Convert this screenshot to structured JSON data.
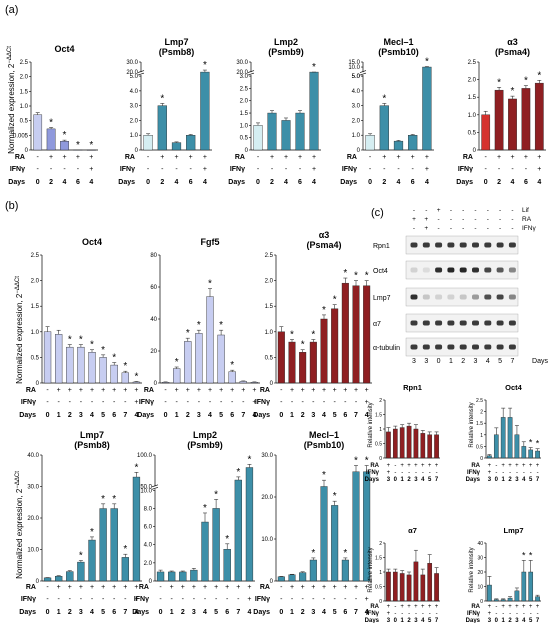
{
  "panels": {
    "a": "(a)",
    "b": "(b)",
    "c": "(c)"
  },
  "colors": {
    "blue_light": "#c7cdf1",
    "blue_mid": "#8f99dc",
    "blue_teal": "#3d8fa8",
    "teal_light": "#d5eef2",
    "red_light": "#d5322e",
    "red_dark": "#8f1f22",
    "pink_marker": "#d6237a",
    "teal_marker": "#1a8f80"
  },
  "shared_text": {
    "ylabel": "Normalized expression, 2^-ΔΔCt",
    "ylabel_short": "Normalized expression, 2",
    "ylabel_sup": "−ΔΔCt",
    "rel_intensity": "Relative intensity",
    "row_RA": "RA",
    "row_IFNy": "IFNγ",
    "row_Days": "Days",
    "star": "*"
  },
  "chart_data": [
    {
      "id": "a1",
      "type": "bar",
      "title": "Oct4",
      "categories": [
        "0",
        "2",
        "4",
        "6",
        "4"
      ],
      "ra": [
        "-",
        "+",
        "+",
        "+",
        "+"
      ],
      "ifny": [
        "-",
        "-",
        "-",
        "-",
        "+"
      ],
      "values": [
        1.0,
        0.6,
        0.25,
        0.005,
        0.003
      ],
      "errors": [
        0.06,
        0.04,
        0.03,
        0.001,
        0.001
      ],
      "sig": [
        false,
        true,
        true,
        true,
        true
      ],
      "ylim": [
        0,
        2.5
      ],
      "yticks": [
        "0",
        "0.005",
        "0.5",
        "1.0",
        "1.5",
        "2.0",
        "2.5"
      ],
      "colors": [
        "#c7cdf1",
        "#8f99dc",
        "#8f99dc",
        "#8f99dc",
        "#8f99dc"
      ]
    },
    {
      "id": "a2",
      "type": "bar",
      "title": "Lmp7",
      "subtitle": "(Psmb8)",
      "categories": [
        "0",
        "2",
        "4",
        "6",
        "4"
      ],
      "ra": [
        "-",
        "+",
        "+",
        "+",
        "+"
      ],
      "ifny": [
        "-",
        "-",
        "-",
        "-",
        "+"
      ],
      "values": [
        1.0,
        3.0,
        0.5,
        1.0,
        20
      ],
      "errors": [
        0.1,
        0.15,
        0.05,
        0.05,
        2
      ],
      "sig": [
        false,
        true,
        false,
        false,
        true
      ],
      "yticks": [
        "0",
        "1.0",
        "2.0",
        "3.0",
        "4.0",
        "5.0",
        "20.0",
        "30.0"
      ],
      "colors": [
        "#d5eef2",
        "#3d8fa8",
        "#3d8fa8",
        "#3d8fa8",
        "#3d8fa8"
      ]
    },
    {
      "id": "a3",
      "type": "bar",
      "title": "Lmp2",
      "subtitle": "(Psmb9)",
      "categories": [
        "0",
        "2",
        "4",
        "6",
        "4"
      ],
      "ra": [
        "-",
        "+",
        "+",
        "+",
        "+"
      ],
      "ifny": [
        "-",
        "-",
        "-",
        "-",
        "+"
      ],
      "values": [
        1.0,
        1.5,
        1.2,
        1.5,
        18
      ],
      "errors": [
        0.1,
        0.1,
        0.1,
        0.1,
        1.5
      ],
      "sig": [
        false,
        false,
        false,
        false,
        true
      ],
      "yticks": [
        "0",
        "0.5",
        "1.0",
        "1.5",
        "2.0",
        "2.5",
        "3.0",
        "20.0",
        "30.0"
      ],
      "colors": [
        "#d5eef2",
        "#3d8fa8",
        "#3d8fa8",
        "#3d8fa8",
        "#3d8fa8"
      ]
    },
    {
      "id": "a4",
      "type": "bar",
      "title": "Mecl–1",
      "subtitle": "(Psmb10)",
      "categories": [
        "0",
        "2",
        "4",
        "6",
        "4"
      ],
      "ra": [
        "-",
        "+",
        "+",
        "+",
        "+"
      ],
      "ifny": [
        "-",
        "-",
        "-",
        "-",
        "+"
      ],
      "values": [
        1.0,
        3.0,
        0.6,
        1.0,
        10
      ],
      "errors": [
        0.1,
        0.15,
        0.05,
        0.05,
        0.5
      ],
      "sig": [
        false,
        true,
        false,
        false,
        true
      ],
      "yticks": [
        "0",
        "1.0",
        "2.0",
        "3.0",
        "4.0",
        "5.0",
        "5.0",
        "10.0",
        "15.0"
      ],
      "colors": [
        "#d5eef2",
        "#3d8fa8",
        "#3d8fa8",
        "#3d8fa8",
        "#3d8fa8"
      ]
    },
    {
      "id": "a5",
      "type": "bar",
      "title": "α3",
      "subtitle": "(Psma4)",
      "categories": [
        "0",
        "2",
        "4",
        "6",
        "4"
      ],
      "ra": [
        "-",
        "+",
        "+",
        "+",
        "+"
      ],
      "ifny": [
        "-",
        "-",
        "-",
        "-",
        "+"
      ],
      "values": [
        1.0,
        1.7,
        1.45,
        1.75,
        1.9
      ],
      "errors": [
        0.1,
        0.08,
        0.08,
        0.08,
        0.08
      ],
      "sig": [
        false,
        true,
        true,
        true,
        true
      ],
      "ylim": [
        0,
        2.5
      ],
      "yticks": [
        "0",
        "0.5",
        "1.0",
        "1.5",
        "2.0",
        "2.5"
      ],
      "colors": [
        "#d5322e",
        "#8f1f22",
        "#8f1f22",
        "#8f1f22",
        "#8f1f22"
      ]
    },
    {
      "id": "b1",
      "type": "bar",
      "title": "Oct4",
      "categories": [
        "0",
        "1",
        "2",
        "3",
        "4",
        "5",
        "6",
        "7",
        "4"
      ],
      "ra": [
        "-",
        "+",
        "+",
        "+",
        "+",
        "+",
        "+",
        "+",
        "+"
      ],
      "ifny": [
        "-",
        "-",
        "-",
        "-",
        "-",
        "-",
        "-",
        "-",
        "+"
      ],
      "values": [
        1.0,
        0.95,
        0.7,
        0.7,
        0.6,
        0.5,
        0.35,
        0.2,
        0.02
      ],
      "errors": [
        0.1,
        0.08,
        0.05,
        0.05,
        0.05,
        0.05,
        0.05,
        0.03,
        0.01
      ],
      "sig": [
        false,
        false,
        true,
        true,
        true,
        true,
        true,
        true,
        true
      ],
      "ylim": [
        0,
        2.5
      ],
      "yticks": [
        "0",
        "0.5",
        "1.0",
        "1.5",
        "2.0",
        "2.5"
      ],
      "colors": [
        "#c7cdf1",
        "#c7cdf1",
        "#c7cdf1",
        "#c7cdf1",
        "#c7cdf1",
        "#c7cdf1",
        "#c7cdf1",
        "#c7cdf1",
        "#c7cdf1"
      ]
    },
    {
      "id": "b2",
      "type": "bar",
      "title": "Fgf5",
      "categories": [
        "0",
        "1",
        "2",
        "3",
        "4",
        "5",
        "6",
        "7",
        "4"
      ],
      "ra": [
        "-",
        "+",
        "+",
        "+",
        "+",
        "+",
        "+",
        "+",
        "+"
      ],
      "ifny": [
        "-",
        "-",
        "-",
        "-",
        "-",
        "-",
        "-",
        "-",
        "+"
      ],
      "values": [
        0.5,
        9,
        26,
        31,
        54,
        30,
        7,
        1,
        0.5
      ],
      "errors": [
        0.2,
        1,
        2,
        2,
        5,
        3,
        1,
        0.3,
        0.2
      ],
      "sig": [
        false,
        true,
        true,
        true,
        true,
        true,
        true,
        false,
        false
      ],
      "ylim": [
        0,
        80
      ],
      "yticks": [
        "0",
        "20",
        "40",
        "60",
        "80"
      ],
      "colors": [
        "#c7cdf1",
        "#c7cdf1",
        "#c7cdf1",
        "#c7cdf1",
        "#c7cdf1",
        "#c7cdf1",
        "#c7cdf1",
        "#c7cdf1",
        "#c7cdf1"
      ]
    },
    {
      "id": "b3",
      "type": "bar",
      "title": "α3",
      "subtitle": "(Psma4)",
      "categories": [
        "0",
        "1",
        "2",
        "3",
        "4",
        "5",
        "6",
        "7",
        "4"
      ],
      "ra": [
        "-",
        "+",
        "+",
        "+",
        "+",
        "+",
        "+",
        "+",
        "+"
      ],
      "ifny": [
        "-",
        "-",
        "-",
        "-",
        "-",
        "-",
        "-",
        "-",
        "+"
      ],
      "values": [
        1.0,
        0.8,
        0.6,
        0.8,
        1.25,
        1.45,
        1.95,
        1.9,
        1.9
      ],
      "errors": [
        0.1,
        0.05,
        0.05,
        0.05,
        0.08,
        0.08,
        0.1,
        0.1,
        0.1
      ],
      "sig": [
        false,
        true,
        true,
        true,
        true,
        true,
        true,
        true,
        true
      ],
      "ylim": [
        0,
        2.5
      ],
      "yticks": [
        "0",
        "0.5",
        "1.0",
        "1.5",
        "2.0",
        "2.5"
      ],
      "colors": [
        "#8f1f22",
        "#8f1f22",
        "#8f1f22",
        "#8f1f22",
        "#8f1f22",
        "#8f1f22",
        "#8f1f22",
        "#8f1f22",
        "#8f1f22"
      ]
    },
    {
      "id": "b4",
      "type": "bar",
      "title": "Lmp7",
      "subtitle": "(Psmb8)",
      "categories": [
        "0",
        "1",
        "2",
        "3",
        "4",
        "5",
        "6",
        "7",
        "4"
      ],
      "ra": [
        "-",
        "+",
        "+",
        "+",
        "+",
        "+",
        "+",
        "+",
        "+"
      ],
      "ifny": [
        "-",
        "-",
        "-",
        "-",
        "-",
        "-",
        "-",
        "-",
        "+"
      ],
      "values": [
        1.0,
        1.5,
        3.0,
        6.0,
        13,
        23,
        23,
        7.5,
        33
      ],
      "errors": [
        0.1,
        0.2,
        0.3,
        0.5,
        1,
        1.5,
        1.5,
        1,
        1.5
      ],
      "sig": [
        false,
        false,
        false,
        true,
        true,
        true,
        true,
        true,
        true
      ],
      "ylim": [
        0,
        40
      ],
      "yticks": [
        "0",
        "10.0",
        "20.0",
        "30.0",
        "40.0"
      ],
      "colors": [
        "#3d8fa8",
        "#3d8fa8",
        "#3d8fa8",
        "#3d8fa8",
        "#3d8fa8",
        "#3d8fa8",
        "#3d8fa8",
        "#3d8fa8",
        "#3d8fa8"
      ]
    },
    {
      "id": "b5",
      "type": "bar",
      "title": "Lmp2",
      "subtitle": "(Psmb9)",
      "categories": [
        "0",
        "1",
        "2",
        "3",
        "4",
        "5",
        "6",
        "7",
        "4"
      ],
      "ra": [
        "-",
        "+",
        "+",
        "+",
        "+",
        "+",
        "+",
        "+",
        "+"
      ],
      "ifny": [
        "-",
        "-",
        "-",
        "-",
        "-",
        "-",
        "-",
        "-",
        "+"
      ],
      "values": [
        1.0,
        1.0,
        1.0,
        1.2,
        6.5,
        8.0,
        3.5,
        60,
        80
      ],
      "errors": [
        0.2,
        0.1,
        0.1,
        0.2,
        1,
        1,
        0.6,
        5,
        5
      ],
      "sig": [
        false,
        false,
        false,
        false,
        true,
        true,
        true,
        true,
        true
      ],
      "yticks": [
        "0",
        "2.0",
        "4.0",
        "6.0",
        "8.0",
        "10.0",
        "50.0",
        "100.0"
      ],
      "colors": [
        "#3d8fa8",
        "#3d8fa8",
        "#3d8fa8",
        "#3d8fa8",
        "#3d8fa8",
        "#3d8fa8",
        "#3d8fa8",
        "#3d8fa8",
        "#3d8fa8"
      ]
    },
    {
      "id": "b6",
      "type": "bar",
      "title": "Mecl–1",
      "subtitle": "(Psmb10)",
      "categories": [
        "0",
        "1",
        "2",
        "3",
        "4",
        "5",
        "6",
        "7",
        "4"
      ],
      "ra": [
        "-",
        "+",
        "+",
        "+",
        "+",
        "+",
        "+",
        "+",
        "+"
      ],
      "ifny": [
        "-",
        "-",
        "-",
        "-",
        "-",
        "-",
        "-",
        "-",
        "+"
      ],
      "values": [
        1.0,
        1.5,
        2.0,
        5.0,
        22.5,
        18,
        5.0,
        26,
        26
      ],
      "errors": [
        0.1,
        0.1,
        0.2,
        0.5,
        1.5,
        1,
        0.5,
        1.5,
        1.5
      ],
      "sig": [
        false,
        false,
        false,
        true,
        true,
        true,
        true,
        true,
        true
      ],
      "ylim": [
        0,
        30
      ],
      "yticks": [
        "0",
        "10.0",
        "20.0",
        "30.0"
      ],
      "colors": [
        "#3d8fa8",
        "#3d8fa8",
        "#3d8fa8",
        "#3d8fa8",
        "#3d8fa8",
        "#3d8fa8",
        "#3d8fa8",
        "#3d8fa8",
        "#3d8fa8"
      ]
    },
    {
      "id": "c1",
      "type": "bar",
      "title": "Rpn1",
      "categories": [
        "3",
        "0",
        "1",
        "2",
        "3",
        "4",
        "5",
        "7"
      ],
      "ra": [
        "+",
        "-",
        "+",
        "+",
        "+",
        "+",
        "+",
        "+"
      ],
      "ifny": [
        "+",
        "-",
        "-",
        "-",
        "-",
        "-",
        "-",
        "-"
      ],
      "values": [
        0.9,
        1.0,
        1.05,
        1.1,
        1.0,
        0.85,
        0.8,
        0.8
      ],
      "errors": [
        0.15,
        0.1,
        0.1,
        0.1,
        0.15,
        0.1,
        0.1,
        0.1
      ],
      "ylim": [
        0,
        2
      ],
      "yticks": [
        "0",
        "0.5",
        "1",
        "1.5",
        "2"
      ],
      "colors": [
        "#8f1f22",
        "#8f1f22",
        "#8f1f22",
        "#8f1f22",
        "#8f1f22",
        "#8f1f22",
        "#8f1f22",
        "#8f1f22"
      ]
    },
    {
      "id": "c2",
      "type": "bar",
      "title": "Oct4",
      "categories": [
        "3",
        "0",
        "1",
        "2",
        "3",
        "4",
        "5",
        "7"
      ],
      "ra": [
        "+",
        "-",
        "+",
        "+",
        "+",
        "+",
        "+",
        "+"
      ],
      "ifny": [
        "+",
        "-",
        "-",
        "-",
        "-",
        "-",
        "-",
        "-"
      ],
      "values": [
        0.1,
        1.0,
        1.75,
        1.75,
        1.0,
        0.5,
        0.35,
        0.3
      ],
      "errors": [
        0.05,
        0.3,
        0.4,
        0.4,
        0.4,
        0.2,
        0.1,
        0.1
      ],
      "sig": [
        false,
        false,
        false,
        false,
        false,
        false,
        true,
        true
      ],
      "ylim": [
        0,
        2.5
      ],
      "yticks": [
        "0",
        "0.5",
        "1",
        "1.5",
        "2",
        "2.5"
      ],
      "colors": [
        "#3d8fa8",
        "#3d8fa8",
        "#3d8fa8",
        "#3d8fa8",
        "#3d8fa8",
        "#3d8fa8",
        "#3d8fa8",
        "#3d8fa8"
      ]
    },
    {
      "id": "c3",
      "type": "bar",
      "title": "α7",
      "categories": [
        "3",
        "0",
        "1",
        "2",
        "3",
        "4",
        "5",
        "7"
      ],
      "ra": [
        "+",
        "-",
        "+",
        "+",
        "+",
        "+",
        "+",
        "+"
      ],
      "ifny": [
        "+",
        "-",
        "-",
        "-",
        "-",
        "-",
        "-",
        "-"
      ],
      "values": [
        1.0,
        1.0,
        0.95,
        0.9,
        1.35,
        0.9,
        1.3,
        0.95
      ],
      "errors": [
        0.1,
        0.1,
        0.1,
        0.1,
        0.4,
        0.2,
        0.3,
        0.2
      ],
      "ylim": [
        0,
        2
      ],
      "yticks": [
        "0",
        "0.5",
        "1",
        "1.5",
        "2"
      ],
      "colors": [
        "#8f1f22",
        "#8f1f22",
        "#8f1f22",
        "#8f1f22",
        "#8f1f22",
        "#8f1f22",
        "#8f1f22",
        "#8f1f22"
      ]
    },
    {
      "id": "c4",
      "type": "bar",
      "title": "Lmp7",
      "categories": [
        "3",
        "0",
        "1",
        "2",
        "3",
        "4",
        "5",
        "7"
      ],
      "ra": [
        "+",
        "-",
        "+",
        "+",
        "+",
        "+",
        "+",
        "+"
      ],
      "ifny": [
        "+",
        "-",
        "-",
        "-",
        "-",
        "-",
        "-",
        "-"
      ],
      "values": [
        11,
        1,
        1,
        2,
        7,
        20,
        20,
        3
      ],
      "errors": [
        6,
        0.5,
        0.5,
        1,
        2,
        8,
        8,
        1
      ],
      "sig": [
        false,
        false,
        false,
        false,
        false,
        true,
        true,
        false
      ],
      "ylim": [
        0,
        40
      ],
      "yticks": [
        "0",
        "10",
        "20",
        "30",
        "40"
      ],
      "colors": [
        "#3d8fa8",
        "#3d8fa8",
        "#3d8fa8",
        "#3d8fa8",
        "#3d8fa8",
        "#3d8fa8",
        "#3d8fa8",
        "#3d8fa8"
      ]
    }
  ],
  "western_blot": {
    "top_rows": [
      {
        "label": "Lif",
        "marks": [
          "-",
          "-",
          "+",
          "-",
          "-",
          "-",
          "-",
          "-",
          "-"
        ]
      },
      {
        "label": "RA",
        "marks": [
          "+",
          "+",
          "-",
          "-",
          "-",
          "-",
          "-",
          "-",
          "-"
        ]
      },
      {
        "label": "IFNγ",
        "marks": [
          "-",
          "+",
          "-",
          "-",
          "-",
          "-",
          "-",
          "-",
          "-"
        ]
      }
    ],
    "bands": [
      "Rpn1",
      "Oct4",
      "Lmp7",
      "α7",
      "α-tubulin"
    ],
    "lanes": [
      "3",
      "3",
      "0",
      "1",
      "2",
      "3",
      "4",
      "5",
      "7"
    ],
    "lanes_label": "Days"
  }
}
